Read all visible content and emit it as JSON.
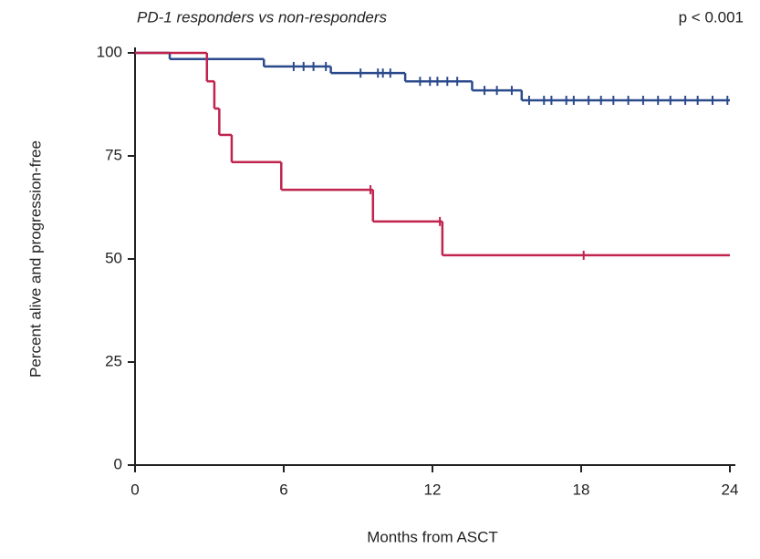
{
  "chart_data": {
    "type": "step",
    "title": "PD-1 responders vs non-responders",
    "annotation": "p < 0.001",
    "x_label": "Months from ASCT",
    "y_label": "Percent alive and progression-free",
    "xlim": [
      0,
      24
    ],
    "xticks": [
      0,
      6,
      12,
      18,
      24
    ],
    "ylim": [
      0,
      100
    ],
    "yticks": [
      0,
      25,
      50,
      75,
      100
    ],
    "series": [
      {
        "color": "#2b4a8c",
        "x": [
          0,
          1.4,
          5.2,
          7.9,
          10.9,
          13.6,
          15.6,
          24
        ],
        "values": [
          100,
          98.5,
          96.7,
          95.1,
          93.1,
          90.9,
          88.5,
          88.5
        ],
        "censor_x": [
          6.4,
          6.8,
          7.2,
          7.7,
          9.1,
          9.8,
          10.0,
          10.3,
          11.5,
          11.9,
          12.2,
          12.6,
          13.0,
          14.1,
          14.6,
          15.2,
          15.9,
          16.5,
          16.8,
          17.4,
          17.7,
          18.3,
          18.8,
          19.3,
          19.9,
          20.5,
          21.1,
          21.6,
          22.2,
          22.7,
          23.3,
          23.9
        ]
      },
      {
        "color": "#c0234e",
        "x": [
          0,
          2.9,
          3.2,
          3.4,
          3.9,
          5.9,
          9.6,
          12.4,
          24
        ],
        "values": [
          100,
          93.1,
          86.5,
          80.1,
          73.5,
          66.8,
          59.1,
          50.9,
          50.9
        ],
        "censor_x": [
          9.5,
          12.3,
          18.1
        ]
      }
    ]
  }
}
